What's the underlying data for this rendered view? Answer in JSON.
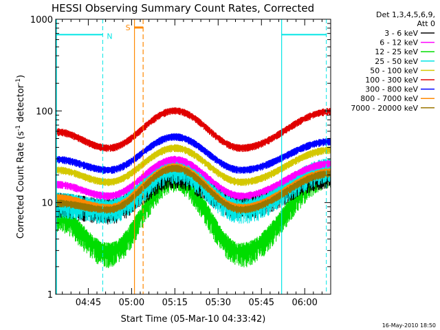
{
  "chart_data": {
    "type": "line",
    "title": "HESSI Observing Summary Count Rates, Corrected",
    "xlabel": "Start Time (05-Mar-10 04:33:42)",
    "ylabel_main": "Corrected Count Rate (s",
    "ylabel_sup1": "-1",
    "ylabel_mid": " detector",
    "ylabel_sup2": "-1",
    "ylabel_end": ")",
    "xlim_min": [
      273.7,
      369.0
    ],
    "ylim": [
      1,
      1000
    ],
    "yscale": "log",
    "x_ticks": [
      {
        "min": 285,
        "label": "04:45"
      },
      {
        "min": 300,
        "label": "05:00"
      },
      {
        "min": 315,
        "label": "05:15"
      },
      {
        "min": 330,
        "label": "05:30"
      },
      {
        "min": 345,
        "label": "05:45"
      },
      {
        "min": 360,
        "label": "06:00"
      }
    ],
    "y_ticks": [
      {
        "value": 1,
        "label": "1"
      },
      {
        "value": 10,
        "label": "10"
      },
      {
        "value": 100,
        "label": "100"
      },
      {
        "value": 1000,
        "label": "1000"
      }
    ],
    "legend_header_1": "Det 1,3,4,5,6,9,",
    "legend_header_2": "Att 0",
    "series": [
      {
        "name": "3 - 6 keV",
        "color": "#000000",
        "values_min": [
          10.5,
          9.0,
          22.0,
          10.0,
          22.0
        ]
      },
      {
        "name": "6 - 12 keV",
        "color": "#ff00ff",
        "values_min": [
          16.0,
          12.0,
          30.0,
          12.0,
          27.0
        ]
      },
      {
        "name": "12 - 25 keV",
        "color": "#00dd00",
        "values_min": [
          7.5,
          3.0,
          20.0,
          3.0,
          22.0
        ]
      },
      {
        "name": "25 - 50 keV",
        "color": "#00e5e5",
        "values_min": [
          10.5,
          9.0,
          25.0,
          9.0,
          25.0
        ]
      },
      {
        "name": "50 - 100 keV",
        "color": "#d4c800",
        "values_min": [
          23.0,
          17.0,
          40.0,
          17.0,
          38.0
        ]
      },
      {
        "name": "100 - 300 keV",
        "color": "#e00000",
        "values_min": [
          60.0,
          40.0,
          102.0,
          40.0,
          100.0
        ]
      },
      {
        "name": "300 - 800 keV",
        "color": "#0000ff",
        "values_min": [
          30.0,
          23.0,
          53.0,
          23.0,
          47.0
        ]
      },
      {
        "name": "800 - 7000 keV",
        "color": "#ff8800",
        "values_min": [
          11.5,
          9.0,
          25.0,
          9.0,
          22.0
        ]
      },
      {
        "name": "7000 - 20000 keV",
        "color": "#9a7600",
        "values_min": [
          10.0,
          8.5,
          24.0,
          8.5,
          21.0
        ]
      }
    ],
    "curve_time_min": [
      274,
      292,
      315,
      338,
      369
    ],
    "night_bar_value": 680,
    "night_label": "N",
    "saa_label": "S",
    "annotations_time_min": {
      "night1_end": 290.0,
      "saa_start": 301.0,
      "saa_end": 304.0,
      "night2_start": 352.0,
      "night2_end": 367.5
    },
    "grid": false,
    "legend_position": "right"
  },
  "footer_date": "16-May-2010 18:50"
}
